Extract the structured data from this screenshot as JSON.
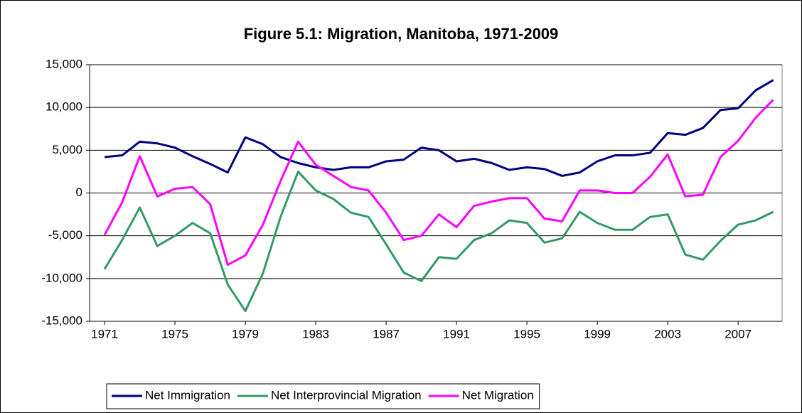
{
  "chart_data": {
    "type": "line",
    "title": "Figure 5.1: Migration, Manitoba, 1971-2009",
    "x": [
      1971,
      1972,
      1973,
      1974,
      1975,
      1976,
      1977,
      1978,
      1979,
      1980,
      1981,
      1982,
      1983,
      1984,
      1985,
      1986,
      1987,
      1988,
      1989,
      1990,
      1991,
      1992,
      1993,
      1994,
      1995,
      1996,
      1997,
      1998,
      1999,
      2000,
      2001,
      2002,
      2003,
      2004,
      2005,
      2006,
      2007,
      2008,
      2009
    ],
    "xlim": [
      1970.15,
      2009.5
    ],
    "xticks": [
      1971,
      1975,
      1979,
      1983,
      1987,
      1991,
      1995,
      1999,
      2003,
      2007
    ],
    "ylim": [
      -15000,
      15000
    ],
    "yticks": [
      {
        "value": -15000,
        "label": "-15,000"
      },
      {
        "value": -10000,
        "label": "-10,000"
      },
      {
        "value": -5000,
        "label": "-5,000"
      },
      0,
      {
        "value": 5000,
        "label": "5,000"
      },
      {
        "value": 10000,
        "label": "10,000"
      },
      {
        "value": 15000,
        "label": "15,000"
      }
    ],
    "grid": true,
    "legend": "bottom",
    "series": [
      {
        "name": "Net Immigration",
        "color": "#000080",
        "values": [
          4200,
          4400,
          6000,
          5800,
          5300,
          4300,
          3400,
          2400,
          6500,
          5700,
          4200,
          3500,
          3000,
          2700,
          3000,
          3000,
          3700,
          3900,
          5300,
          5000,
          3700,
          4000,
          3500,
          2700,
          3000,
          2800,
          2000,
          2400,
          3700,
          4400,
          4400,
          4700,
          7000,
          6800,
          7600,
          9700,
          9900,
          12000,
          13200
        ]
      },
      {
        "name": "Net Interprovincial Migration",
        "color": "#339966",
        "values": [
          -8900,
          -5500,
          -1700,
          -6200,
          -5000,
          -3500,
          -4700,
          -10700,
          -13800,
          -9400,
          -2800,
          2500,
          300,
          -700,
          -2300,
          -2800,
          -6000,
          -9300,
          -10300,
          -7500,
          -7700,
          -5500,
          -4700,
          -3200,
          -3500,
          -5800,
          -5300,
          -2200,
          -3500,
          -4300,
          -4300,
          -2800,
          -2500,
          -7200,
          -7800,
          -5600,
          -3700,
          -3200,
          -2200
        ]
      },
      {
        "name": "Net Migration",
        "color": "#ff00ff",
        "values": [
          -4900,
          -1100,
          4300,
          -400,
          500,
          700,
          -1300,
          -8400,
          -7300,
          -3700,
          1400,
          6000,
          3300,
          2000,
          700,
          300,
          -2300,
          -5500,
          -5000,
          -2500,
          -4000,
          -1500,
          -1000,
          -600,
          -600,
          -3000,
          -3300,
          300,
          300,
          0,
          0,
          1900,
          4500,
          -400,
          -200,
          4200,
          6100,
          8800,
          10900
        ]
      }
    ]
  }
}
